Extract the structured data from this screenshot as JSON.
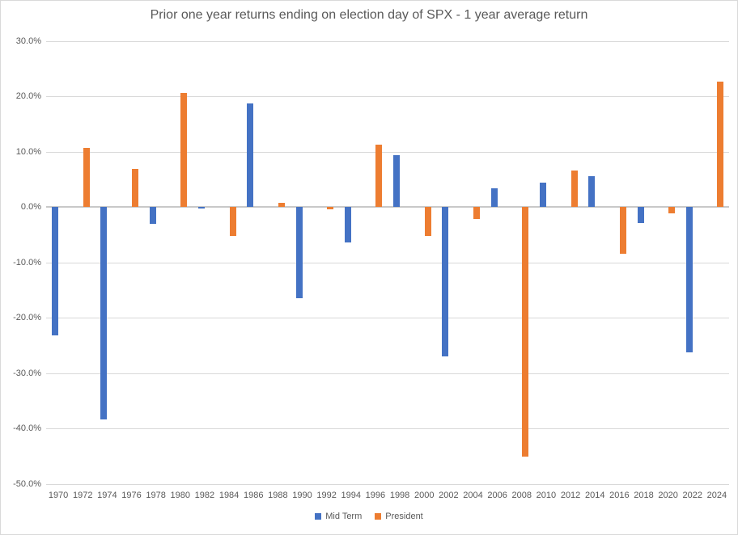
{
  "chart_data": {
    "type": "bar",
    "title": "Prior one year returns ending on election day of SPX - 1 year average return",
    "categories": [
      "1970",
      "1972",
      "1974",
      "1976",
      "1978",
      "1980",
      "1982",
      "1984",
      "1986",
      "1988",
      "1990",
      "1992",
      "1994",
      "1996",
      "1998",
      "2000",
      "2002",
      "2004",
      "2006",
      "2008",
      "2010",
      "2012",
      "2014",
      "2016",
      "2018",
      "2020",
      "2022",
      "2024"
    ],
    "series": [
      {
        "name": "Mid Term",
        "color": "#4472C4",
        "values": [
          -23.2,
          null,
          -38.4,
          null,
          -3.1,
          null,
          -0.3,
          null,
          18.7,
          null,
          -16.5,
          null,
          -6.4,
          null,
          9.3,
          null,
          -27.0,
          null,
          3.3,
          null,
          4.4,
          null,
          5.5,
          null,
          -2.9,
          null,
          -26.3,
          null
        ]
      },
      {
        "name": "President",
        "color": "#ED7D31",
        "values": [
          null,
          10.7,
          null,
          6.9,
          null,
          20.6,
          null,
          -5.3,
          null,
          0.7,
          null,
          -0.4,
          null,
          11.2,
          null,
          -5.3,
          null,
          -2.2,
          null,
          -45.1,
          null,
          6.5,
          null,
          -8.5,
          null,
          -1.1,
          null,
          22.7
        ]
      }
    ],
    "y_axis": {
      "min": -50,
      "max": 30,
      "step": 10,
      "tick_labels": [
        "30.0%",
        "20.0%",
        "10.0%",
        "0.0%",
        "-10.0%",
        "-20.0%",
        "-30.0%",
        "-40.0%",
        "-50.0%"
      ]
    },
    "xlabel": "",
    "ylabel": "",
    "grid": true,
    "legend_position": "bottom",
    "colors": {
      "grid": "#D9D9D9",
      "zero_axis": "#C9C9C9",
      "text": "#595959",
      "background": "#FFFFFF"
    }
  }
}
